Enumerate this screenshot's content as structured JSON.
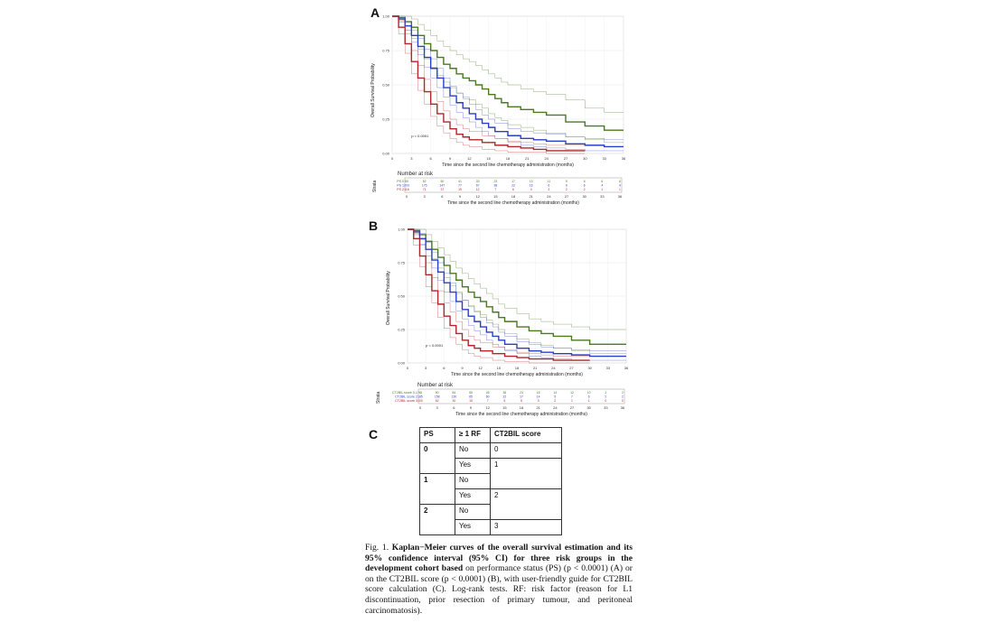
{
  "panels": {
    "A": {
      "letter": "A",
      "ylabel": "Overall Survival Probability",
      "xlabel": "Time since the second line chemotherapy administration (months)",
      "pvalue": "p < 0.0001",
      "yticks": [
        "0.00",
        "0.25",
        "0.50",
        "0.75",
        "1.00"
      ],
      "xticks": [
        "0",
        "3",
        "6",
        "9",
        "12",
        "15",
        "18",
        "21",
        "24",
        "27",
        "30",
        "33",
        "36"
      ],
      "risk": {
        "title": "Number at risk",
        "strata_label": "Strata",
        "rows": [
          {
            "name": "PS 0",
            "color": "#4a7a1e",
            "values": [
              "55",
              "52",
              "50",
              "41",
              "33",
              "23",
              "17",
              "13",
              "11",
              "9",
              "6",
              "6",
              "6"
            ]
          },
          {
            "name": "PS 1",
            "color": "#2a3fc8",
            "values": [
              "203",
              "175",
              "147",
              "77",
              "67",
              "38",
              "22",
              "16",
              "6",
              "6",
              "6",
              "4",
              "4"
            ]
          },
          {
            "name": "PS 2",
            "color": "#b0262a",
            "values": [
              "116",
              "71",
              "37",
              "19",
              "12",
              "7",
              "6",
              "4",
              "3",
              "2",
              "2",
              "1",
              "1"
            ]
          }
        ],
        "xlabel": "Time since the second line chemotherapy administration (months)"
      }
    },
    "B": {
      "letter": "B",
      "ylabel": "Overall Survival Probability",
      "xlabel": "Time since the second line chemotherapy administration (months)",
      "pvalue": "p < 0.0001",
      "yticks": [
        "0.00",
        "0.25",
        "0.50",
        "0.75",
        "1.00"
      ],
      "xticks": [
        "0",
        "3",
        "6",
        "9",
        "12",
        "15",
        "18",
        "21",
        "24",
        "27",
        "30",
        "33",
        "36"
      ],
      "risk": {
        "title": "Number at risk",
        "strata_label": "Strata",
        "rows": [
          {
            "name": "CT2BIL score 0-1",
            "color": "#4a7a1e",
            "values": [
              "98",
              "90",
              "84",
              "55",
              "45",
              "36",
              "23",
              "18",
              "14",
              "12",
              "10",
              "2",
              "2"
            ]
          },
          {
            "name": "CT2BIL score 2",
            "color": "#2a3fc8",
            "values": [
              "185",
              "158",
              "130",
              "65",
              "60",
              "22",
              "17",
              "14",
              "9",
              "7",
              "6",
              "2",
              "2"
            ]
          },
          {
            "name": "CT2BIL score 3",
            "color": "#b0262a",
            "values": [
              "100",
              "62",
              "30",
              "15",
              "7",
              "5",
              "5",
              "3",
              "2",
              "1",
              "1",
              "0",
              "0"
            ]
          }
        ],
        "xlabel": "Time since the second line chemotherapy administration (months)"
      }
    }
  },
  "chart_data": [
    {
      "type": "line",
      "panel": "A",
      "xlabel": "Time since the second line chemotherapy administration (months)",
      "ylabel": "Overall Survival Probability",
      "xlim": [
        0,
        36
      ],
      "ylim": [
        0,
        1
      ],
      "series": [
        {
          "name": "PS 0",
          "color": "#4a7a1e",
          "x": [
            0,
            1,
            2,
            3,
            4,
            5,
            6,
            7,
            8,
            9,
            10,
            11,
            12,
            13,
            14,
            15,
            16,
            17,
            18,
            20,
            22,
            24,
            27,
            30,
            33,
            36
          ],
          "y": [
            1,
            0.99,
            0.96,
            0.92,
            0.86,
            0.8,
            0.75,
            0.7,
            0.65,
            0.62,
            0.58,
            0.55,
            0.53,
            0.5,
            0.47,
            0.43,
            0.4,
            0.37,
            0.34,
            0.32,
            0.3,
            0.28,
            0.23,
            0.2,
            0.17,
            0.17
          ],
          "lower": [
            1,
            0.96,
            0.9,
            0.84,
            0.76,
            0.69,
            0.63,
            0.57,
            0.52,
            0.48,
            0.44,
            0.41,
            0.39,
            0.36,
            0.33,
            0.29,
            0.26,
            0.24,
            0.21,
            0.19,
            0.17,
            0.15,
            0.12,
            0.1,
            0.08,
            0.08
          ],
          "upper": [
            1,
            1,
            1,
            0.98,
            0.94,
            0.9,
            0.86,
            0.82,
            0.78,
            0.75,
            0.72,
            0.69,
            0.67,
            0.64,
            0.61,
            0.58,
            0.55,
            0.52,
            0.5,
            0.47,
            0.45,
            0.43,
            0.39,
            0.33,
            0.3,
            0.3
          ]
        },
        {
          "name": "PS 1",
          "color": "#2a3fc8",
          "x": [
            0,
            1,
            2,
            3,
            4,
            5,
            6,
            7,
            8,
            9,
            10,
            11,
            12,
            13,
            14,
            15,
            16,
            18,
            20,
            22,
            24,
            27,
            30,
            33,
            36
          ],
          "y": [
            1,
            0.98,
            0.93,
            0.86,
            0.78,
            0.7,
            0.62,
            0.55,
            0.48,
            0.42,
            0.37,
            0.33,
            0.29,
            0.25,
            0.22,
            0.19,
            0.16,
            0.13,
            0.11,
            0.1,
            0.09,
            0.07,
            0.06,
            0.05,
            0.05
          ],
          "lower": [
            1,
            0.96,
            0.9,
            0.81,
            0.72,
            0.63,
            0.55,
            0.48,
            0.41,
            0.35,
            0.3,
            0.26,
            0.23,
            0.19,
            0.16,
            0.13,
            0.11,
            0.08,
            0.06,
            0.05,
            0.04,
            0.03,
            0.02,
            0.02,
            0.02
          ],
          "upper": [
            1,
            1,
            0.96,
            0.9,
            0.84,
            0.76,
            0.69,
            0.62,
            0.55,
            0.49,
            0.44,
            0.4,
            0.36,
            0.32,
            0.28,
            0.25,
            0.22,
            0.18,
            0.16,
            0.15,
            0.14,
            0.12,
            0.11,
            0.1,
            0.1
          ]
        },
        {
          "name": "PS 2",
          "color": "#b0262a",
          "x": [
            0,
            1,
            2,
            3,
            4,
            5,
            6,
            7,
            8,
            9,
            10,
            11,
            12,
            14,
            16,
            18,
            20,
            22,
            24,
            27,
            30
          ],
          "y": [
            1,
            0.92,
            0.8,
            0.67,
            0.55,
            0.45,
            0.36,
            0.29,
            0.23,
            0.18,
            0.14,
            0.12,
            0.1,
            0.08,
            0.06,
            0.05,
            0.04,
            0.03,
            0.02,
            0.02,
            0.02
          ],
          "lower": [
            1,
            0.87,
            0.73,
            0.58,
            0.46,
            0.36,
            0.27,
            0.2,
            0.15,
            0.11,
            0.08,
            0.06,
            0.05,
            0.03,
            0.02,
            0.01,
            0.01,
            0.01,
            0,
            0,
            0
          ],
          "upper": [
            1,
            0.97,
            0.87,
            0.75,
            0.64,
            0.54,
            0.45,
            0.38,
            0.31,
            0.25,
            0.21,
            0.18,
            0.16,
            0.13,
            0.11,
            0.09,
            0.08,
            0.07,
            0.06,
            0.06,
            0.06
          ]
        }
      ]
    },
    {
      "type": "line",
      "panel": "B",
      "xlabel": "Time since the second line chemotherapy administration (months)",
      "ylabel": "Overall Survival Probability",
      "xlim": [
        0,
        36
      ],
      "ylim": [
        0,
        1
      ],
      "series": [
        {
          "name": "CT2BIL score 0-1",
          "color": "#4a7a1e",
          "x": [
            0,
            1,
            2,
            3,
            4,
            5,
            6,
            7,
            8,
            9,
            10,
            11,
            12,
            13,
            14,
            15,
            16,
            18,
            20,
            22,
            24,
            27,
            30,
            33,
            36
          ],
          "y": [
            1,
            0.99,
            0.96,
            0.91,
            0.85,
            0.79,
            0.73,
            0.67,
            0.62,
            0.57,
            0.53,
            0.49,
            0.46,
            0.42,
            0.38,
            0.34,
            0.31,
            0.27,
            0.24,
            0.22,
            0.2,
            0.17,
            0.14,
            0.14,
            0.14
          ],
          "lower": [
            1,
            0.97,
            0.92,
            0.85,
            0.78,
            0.71,
            0.64,
            0.58,
            0.52,
            0.47,
            0.43,
            0.39,
            0.36,
            0.32,
            0.29,
            0.25,
            0.22,
            0.18,
            0.15,
            0.13,
            0.11,
            0.09,
            0.07,
            0.07,
            0.07
          ],
          "upper": [
            1,
            1,
            1,
            0.96,
            0.91,
            0.86,
            0.81,
            0.76,
            0.71,
            0.67,
            0.63,
            0.59,
            0.56,
            0.52,
            0.48,
            0.44,
            0.41,
            0.37,
            0.33,
            0.31,
            0.29,
            0.27,
            0.25,
            0.25,
            0.25
          ]
        },
        {
          "name": "CT2BIL score 2",
          "color": "#2a3fc8",
          "x": [
            0,
            1,
            2,
            3,
            4,
            5,
            6,
            7,
            8,
            9,
            10,
            11,
            12,
            13,
            14,
            15,
            16,
            18,
            20,
            22,
            24,
            27,
            30,
            33,
            36
          ],
          "y": [
            1,
            0.98,
            0.93,
            0.85,
            0.77,
            0.68,
            0.6,
            0.53,
            0.46,
            0.4,
            0.35,
            0.31,
            0.27,
            0.23,
            0.2,
            0.17,
            0.14,
            0.11,
            0.09,
            0.08,
            0.07,
            0.06,
            0.05,
            0.05,
            0.05
          ],
          "lower": [
            1,
            0.96,
            0.89,
            0.8,
            0.71,
            0.62,
            0.53,
            0.46,
            0.39,
            0.33,
            0.28,
            0.24,
            0.21,
            0.17,
            0.14,
            0.12,
            0.09,
            0.07,
            0.05,
            0.04,
            0.03,
            0.02,
            0.02,
            0.02,
            0.02
          ],
          "upper": [
            1,
            1,
            0.97,
            0.9,
            0.83,
            0.75,
            0.67,
            0.6,
            0.53,
            0.47,
            0.42,
            0.38,
            0.34,
            0.3,
            0.27,
            0.23,
            0.2,
            0.16,
            0.14,
            0.12,
            0.11,
            0.1,
            0.09,
            0.09,
            0.09
          ]
        },
        {
          "name": "CT2BIL score 3",
          "color": "#b0262a",
          "x": [
            0,
            1,
            2,
            3,
            4,
            5,
            6,
            7,
            8,
            9,
            10,
            11,
            12,
            14,
            16,
            18,
            20,
            22,
            24,
            27,
            30
          ],
          "y": [
            1,
            0.93,
            0.8,
            0.66,
            0.54,
            0.44,
            0.35,
            0.28,
            0.22,
            0.17,
            0.13,
            0.11,
            0.09,
            0.07,
            0.05,
            0.04,
            0.03,
            0.03,
            0.02,
            0.02,
            0.02
          ],
          "lower": [
            1,
            0.88,
            0.72,
            0.57,
            0.45,
            0.34,
            0.26,
            0.19,
            0.14,
            0.1,
            0.07,
            0.05,
            0.04,
            0.02,
            0.01,
            0.01,
            0,
            0,
            0,
            0,
            0
          ],
          "upper": [
            1,
            0.98,
            0.88,
            0.75,
            0.64,
            0.54,
            0.45,
            0.38,
            0.31,
            0.25,
            0.2,
            0.17,
            0.15,
            0.12,
            0.1,
            0.08,
            0.07,
            0.06,
            0.05,
            0.05,
            0.05
          ]
        }
      ]
    }
  ],
  "panelC": {
    "letter": "C",
    "headers": [
      "PS",
      "≥ 1 RF",
      "CT2BIL score"
    ],
    "rows": [
      {
        "ps": "0",
        "rf": "No",
        "score": "0"
      },
      {
        "ps": "",
        "rf": "Yes",
        "score": "1"
      },
      {
        "ps": "1",
        "rf": "No",
        "score": ""
      },
      {
        "ps": "",
        "rf": "Yes",
        "score": "2"
      },
      {
        "ps": "2",
        "rf": "No",
        "score": ""
      },
      {
        "ps": "",
        "rf": "Yes",
        "score": "3"
      }
    ]
  },
  "caption": {
    "prefix": "Fig. 1. ",
    "bold_part": "Kaplan−Meier curves of the overall survival estimation and its 95% confidence interval (95% CI) for three risk groups in the development cohort based",
    "rest": " on performance status (PS) (p < 0.0001) (A) or on the CT2BIL score (p < 0.0001) (B), with user-friendly guide for CT2BIL score calculation (C). Log-rank tests. RF: risk factor (reason for L1 discontinuation, prior resection of primary tumour, and peritoneal carcinomatosis)."
  }
}
